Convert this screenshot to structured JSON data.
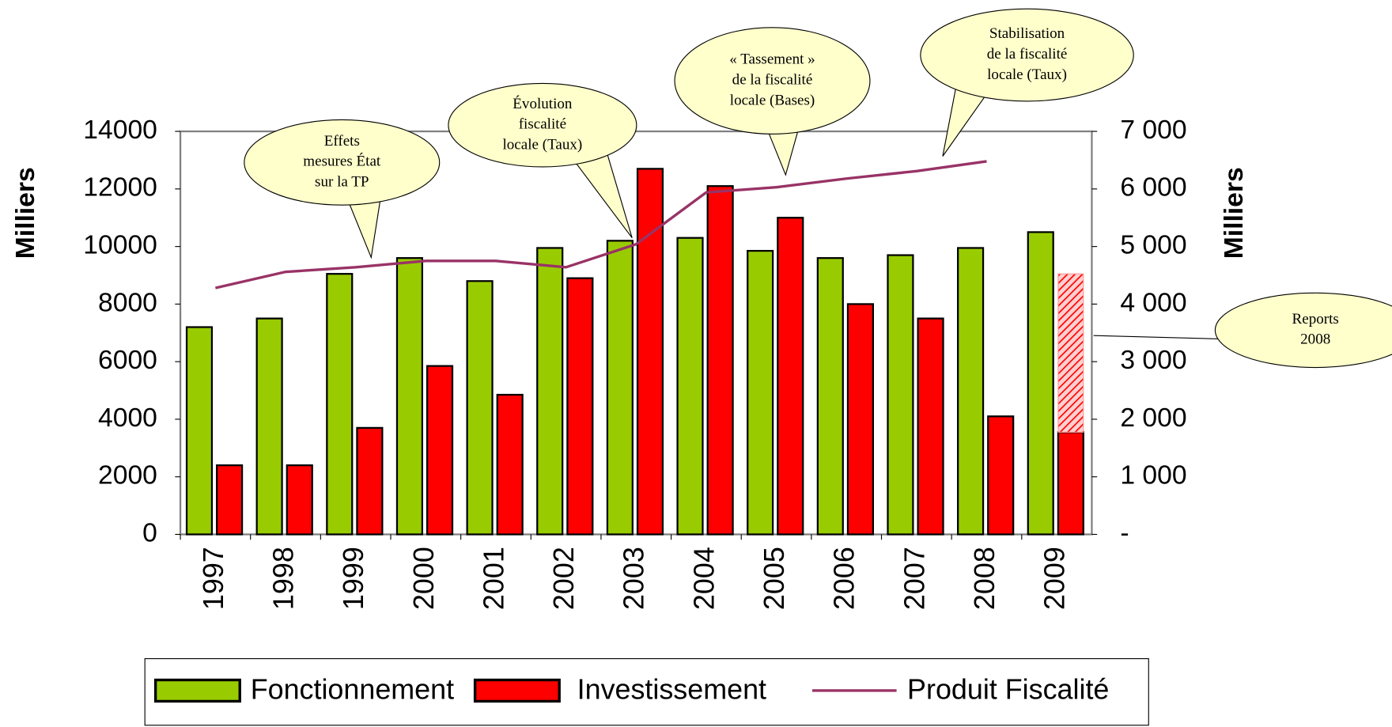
{
  "chart_data": {
    "type": "bar",
    "y_label": "Milliers",
    "y2_label": "Milliers",
    "categories": [
      "1997",
      "1998",
      "1999",
      "2000",
      "2001",
      "2002",
      "2003",
      "2004",
      "2005",
      "2006",
      "2007",
      "2008",
      "2009"
    ],
    "series": [
      {
        "name": "Fonctionnement",
        "color": "#99cc00",
        "type": "bar",
        "values": [
          7200,
          7500,
          9050,
          9600,
          8800,
          9950,
          10200,
          10300,
          9850,
          9600,
          9700,
          9950,
          10500
        ]
      },
      {
        "name": "Investissement",
        "color": "#ff0000",
        "type": "bar",
        "values": [
          2400,
          2400,
          3700,
          5850,
          4850,
          8900,
          12700,
          12100,
          11000,
          8000,
          7500,
          4100,
          3550
        ]
      },
      {
        "name": "Produit Fiscalité",
        "color": "#993366",
        "type": "line",
        "axis": "y2",
        "values": [
          4280,
          4560,
          4640,
          4750,
          4750,
          4640,
          5040,
          5940,
          6030,
          6180,
          6310,
          6480,
          null
        ]
      }
    ],
    "reports": {
      "lines": [
        "Reports",
        "2008"
      ],
      "category": 12,
      "value": 5500,
      "color": "#ff0000"
    },
    "annotations": [
      {
        "lines": [
          "Effets",
          "mesures État",
          "sur la TP"
        ]
      },
      {
        "lines": [
          "Évolution",
          "fiscalité",
          "locale (Taux)"
        ]
      },
      {
        "lines": [
          "« Tassement »",
          "de la fiscalité",
          "locale (Bases)"
        ]
      },
      {
        "lines": [
          "Stabilisation",
          "de la fiscalité",
          "locale (Taux)"
        ]
      }
    ],
    "ylim": [
      0,
      14000
    ],
    "yticks": [
      0,
      2000,
      4000,
      6000,
      8000,
      10000,
      12000,
      14000
    ],
    "y2lim": [
      0,
      7000
    ],
    "y2ticks": [
      {
        "value": 0,
        "label": "-"
      },
      {
        "value": 1000,
        "label": "1 000"
      },
      {
        "value": 2000,
        "label": "2 000"
      },
      {
        "value": 3000,
        "label": "3 000"
      },
      {
        "value": 4000,
        "label": "4 000"
      },
      {
        "value": 5000,
        "label": "5 000"
      },
      {
        "value": 6000,
        "label": "6 000"
      },
      {
        "value": 7000,
        "label": "7 000"
      }
    ],
    "grid": false,
    "legend": "bottom"
  }
}
